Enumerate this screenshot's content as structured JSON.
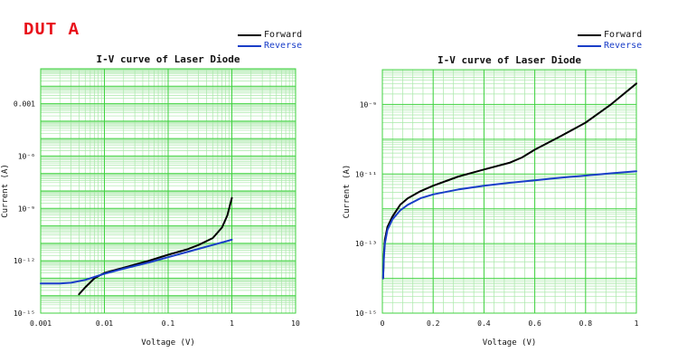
{
  "page": {
    "title": "DUT A"
  },
  "legend": {
    "forward": {
      "label": "Forward",
      "color": "#000000"
    },
    "reverse": {
      "label": "Reverse",
      "color": "#1a3ec8"
    }
  },
  "colors": {
    "grid": "#3fd23f",
    "grid_minor": "#a9e8a9",
    "background": "#ffffff"
  },
  "chart_data": [
    {
      "type": "line",
      "title": "I-V curve of Laser Diode",
      "xlabel": "Voltage (V)",
      "ylabel": "Current (A)",
      "x_scale": "log",
      "y_scale": "log",
      "xlim": [
        0.001,
        10
      ],
      "ylim": [
        1e-15,
        0.1
      ],
      "x_ticks": [
        {
          "value": 0.001,
          "label": "0.001"
        },
        {
          "value": 0.01,
          "label": "0.01"
        },
        {
          "value": 0.1,
          "label": "0.1"
        },
        {
          "value": 1,
          "label": "1"
        },
        {
          "value": 10,
          "label": "10"
        }
      ],
      "y_ticks": [
        {
          "value": 1e-15,
          "label": "10⁻¹⁵"
        },
        {
          "value": 1e-12,
          "label": "10⁻¹²"
        },
        {
          "value": 1e-09,
          "label": "10⁻⁹"
        },
        {
          "value": 1e-06,
          "label": "10⁻⁶"
        },
        {
          "value": 0.001,
          "label": "0.001"
        }
      ],
      "grid": true,
      "legend_position": "top-right",
      "series": [
        {
          "name": "Forward",
          "color": "#000000",
          "x": [
            0.004,
            0.005,
            0.007,
            0.01,
            0.02,
            0.05,
            0.1,
            0.2,
            0.3,
            0.5,
            0.7,
            0.85,
            1.0
          ],
          "y": [
            1.2e-14,
            3e-14,
            1e-13,
            2e-13,
            4e-13,
            1e-12,
            2.2e-12,
            4.5e-12,
            8e-12,
            2e-11,
            8e-11,
            4e-10,
            4e-09
          ]
        },
        {
          "name": "Reverse",
          "color": "#1a3ec8",
          "x": [
            0.001,
            0.002,
            0.003,
            0.005,
            0.007,
            0.01,
            0.02,
            0.05,
            0.1,
            0.2,
            0.5,
            1.0
          ],
          "y": [
            5e-14,
            5e-14,
            5.5e-14,
            8e-14,
            1.2e-13,
            1.8e-13,
            3.5e-13,
            8e-13,
            1.6e-12,
            3.2e-12,
            8e-12,
            1.6e-11
          ]
        }
      ]
    },
    {
      "type": "line",
      "title": "I-V curve of Laser Diode",
      "xlabel": "Voltage (V)",
      "ylabel": "Current (A)",
      "x_scale": "linear",
      "y_scale": "log",
      "xlim": [
        0,
        1
      ],
      "ylim": [
        1e-15,
        1e-08
      ],
      "x_ticks": [
        {
          "value": 0,
          "label": "0"
        },
        {
          "value": 0.2,
          "label": "0.2"
        },
        {
          "value": 0.4,
          "label": "0.4"
        },
        {
          "value": 0.6,
          "label": "0.6"
        },
        {
          "value": 0.8,
          "label": "0.8"
        },
        {
          "value": 1,
          "label": "1"
        }
      ],
      "y_ticks": [
        {
          "value": 1e-15,
          "label": "10⁻¹⁵"
        },
        {
          "value": 1e-13,
          "label": "10⁻¹³"
        },
        {
          "value": 1e-11,
          "label": "10⁻¹¹"
        },
        {
          "value": 1e-09,
          "label": "10⁻⁹"
        }
      ],
      "grid": true,
      "legend_position": "top-right",
      "series": [
        {
          "name": "Forward",
          "color": "#000000",
          "x": [
            0.003,
            0.006,
            0.01,
            0.02,
            0.04,
            0.07,
            0.1,
            0.15,
            0.2,
            0.3,
            0.4,
            0.5,
            0.55,
            0.6,
            0.7,
            0.8,
            0.9,
            1.0
          ],
          "y": [
            1e-14,
            5e-14,
            1.3e-13,
            3e-13,
            6e-13,
            1.3e-12,
            2e-12,
            3.2e-12,
            4.6e-12,
            8.5e-12,
            1.35e-11,
            2.1e-11,
            3e-11,
            5e-11,
            1.2e-10,
            3e-10,
            1e-09,
            4e-09
          ]
        },
        {
          "name": "Reverse",
          "color": "#1a3ec8",
          "x": [
            0.003,
            0.006,
            0.01,
            0.02,
            0.04,
            0.07,
            0.1,
            0.15,
            0.2,
            0.3,
            0.4,
            0.5,
            0.6,
            0.7,
            0.8,
            0.9,
            1.0
          ],
          "y": [
            1e-14,
            4e-14,
            1e-13,
            2.5e-13,
            5e-13,
            9e-13,
            1.3e-12,
            2e-12,
            2.6e-12,
            3.6e-12,
            4.6e-12,
            5.6e-12,
            6.6e-12,
            7.8e-12,
            9e-12,
            1.05e-11,
            1.2e-11
          ]
        }
      ]
    }
  ]
}
